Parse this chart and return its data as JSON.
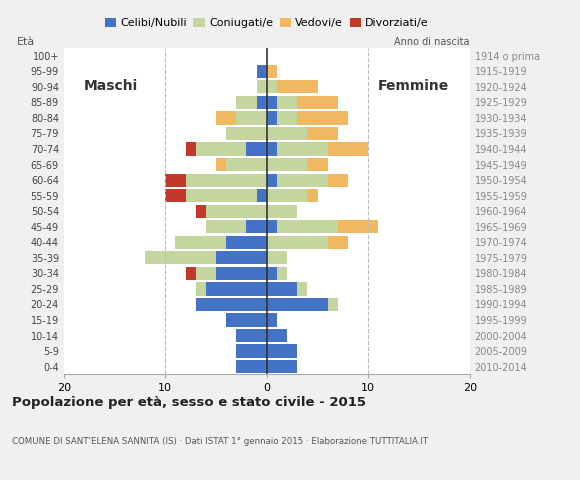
{
  "age_groups": [
    "0-4",
    "5-9",
    "10-14",
    "15-19",
    "20-24",
    "25-29",
    "30-34",
    "35-39",
    "40-44",
    "45-49",
    "50-54",
    "55-59",
    "60-64",
    "65-69",
    "70-74",
    "75-79",
    "80-84",
    "85-89",
    "90-94",
    "95-99",
    "100+"
  ],
  "birth_years": [
    "2010-2014",
    "2005-2009",
    "2000-2004",
    "1995-1999",
    "1990-1994",
    "1985-1989",
    "1980-1984",
    "1975-1979",
    "1970-1974",
    "1965-1969",
    "1960-1964",
    "1955-1959",
    "1950-1954",
    "1945-1949",
    "1940-1944",
    "1935-1939",
    "1930-1934",
    "1925-1929",
    "1920-1924",
    "1915-1919",
    "1914 o prima"
  ],
  "male": {
    "celibi": [
      3,
      3,
      3,
      4,
      7,
      6,
      5,
      5,
      4,
      2,
      0,
      1,
      0,
      0,
      2,
      0,
      0,
      1,
      0,
      1,
      0
    ],
    "coniugati": [
      0,
      0,
      0,
      0,
      0,
      1,
      2,
      7,
      5,
      4,
      6,
      7,
      8,
      4,
      5,
      4,
      3,
      2,
      1,
      0,
      0
    ],
    "vedovi": [
      0,
      0,
      0,
      0,
      0,
      0,
      0,
      0,
      0,
      0,
      0,
      0,
      0,
      1,
      0,
      0,
      2,
      0,
      0,
      0,
      0
    ],
    "divorziati": [
      0,
      0,
      0,
      0,
      0,
      0,
      1,
      0,
      0,
      0,
      1,
      2,
      2,
      0,
      1,
      0,
      0,
      0,
      0,
      0,
      0
    ]
  },
  "female": {
    "nubili": [
      3,
      3,
      2,
      1,
      6,
      3,
      1,
      0,
      0,
      1,
      0,
      0,
      1,
      0,
      1,
      0,
      1,
      1,
      0,
      0,
      0
    ],
    "coniugate": [
      0,
      0,
      0,
      0,
      1,
      1,
      1,
      2,
      6,
      6,
      3,
      4,
      5,
      4,
      5,
      4,
      2,
      2,
      1,
      0,
      0
    ],
    "vedove": [
      0,
      0,
      0,
      0,
      0,
      0,
      0,
      0,
      2,
      4,
      0,
      1,
      2,
      2,
      4,
      3,
      5,
      4,
      4,
      1,
      0
    ],
    "divorziate": [
      0,
      0,
      0,
      0,
      0,
      0,
      0,
      0,
      0,
      0,
      0,
      0,
      0,
      0,
      0,
      0,
      0,
      0,
      0,
      0,
      0
    ]
  },
  "colors": {
    "celibi": "#4472c4",
    "coniugati": "#c5d5a0",
    "vedovi": "#f0b860",
    "divorziati": "#c0392b"
  },
  "title": "Popolazione per età, sesso e stato civile - 2015",
  "subtitle": "COMUNE DI SANT'ELENA SANNITA (IS) · Dati ISTAT 1° gennaio 2015 · Elaborazione TUTTITALIA.IT",
  "xlim": 20,
  "legend_labels": [
    "Celibi/Nubili",
    "Coniugati/e",
    "Vedovi/e",
    "Divorziati/e"
  ],
  "bg_color": "#f0f0f0",
  "plot_bg": "#ffffff"
}
